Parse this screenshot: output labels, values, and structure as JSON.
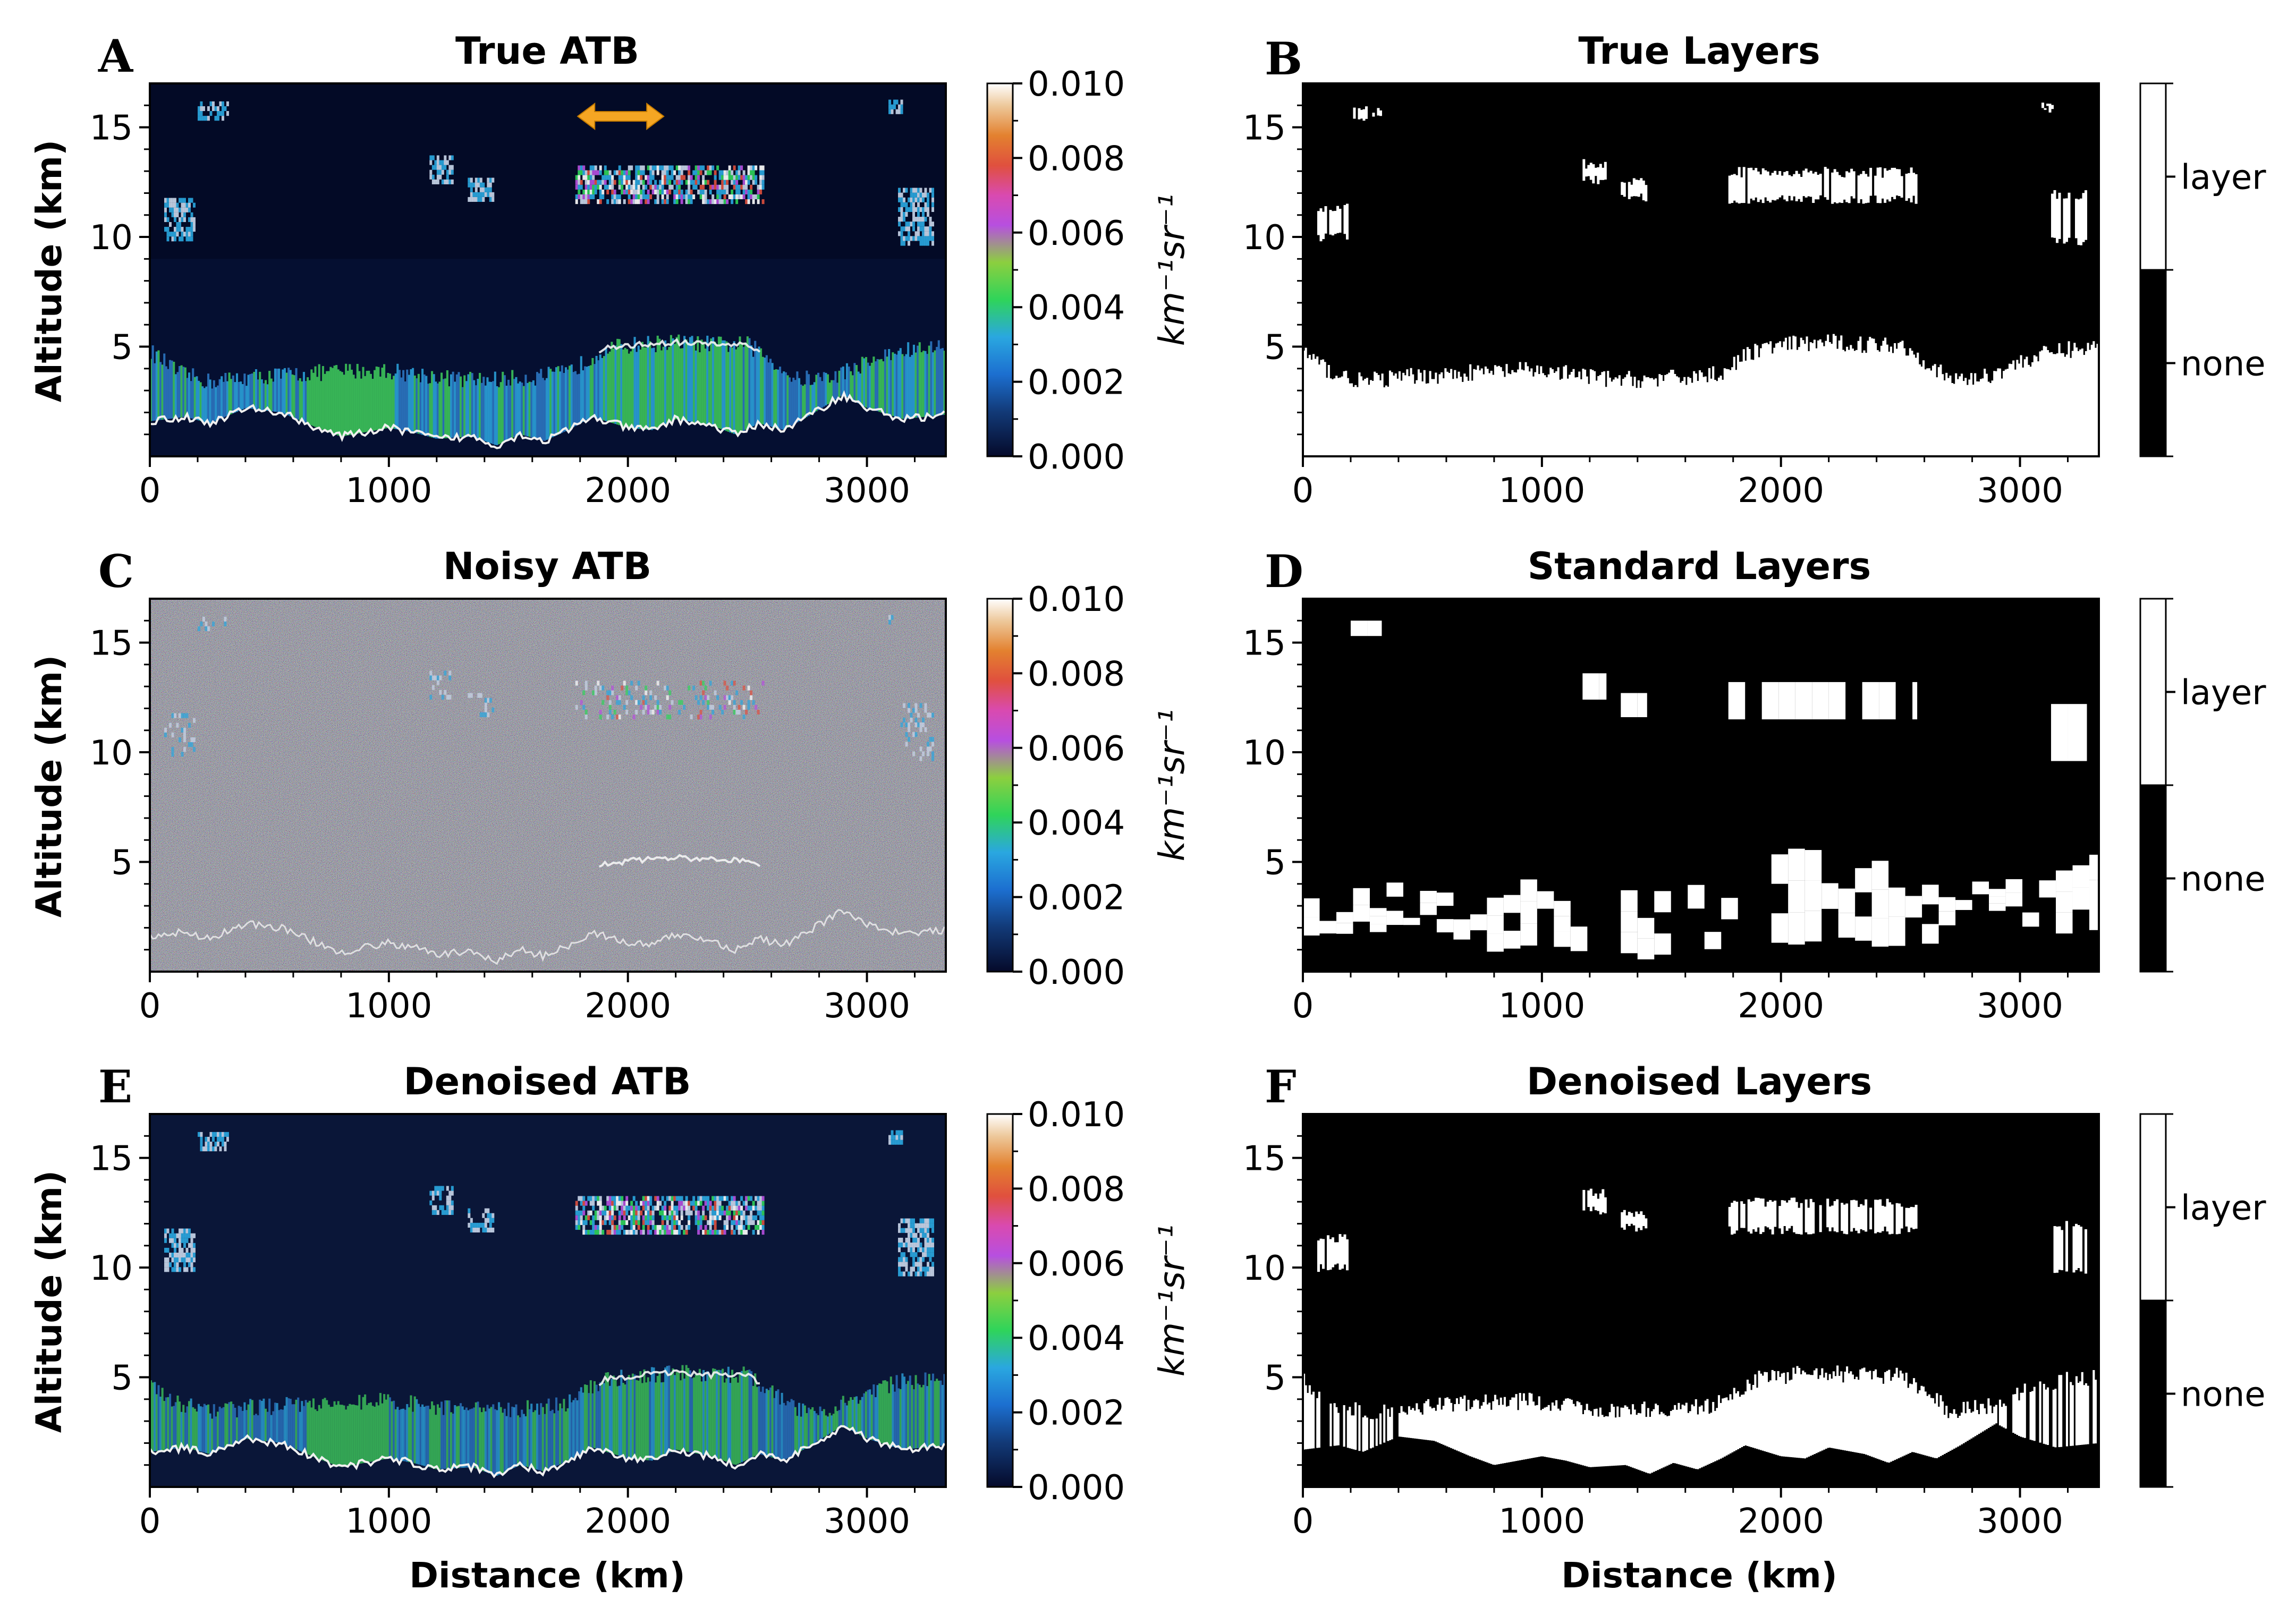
{
  "chart_data": [
    {
      "panel": "A",
      "title": "True ATB",
      "type": "heatmap",
      "kind": "atb",
      "variant": "true",
      "xlabel": "",
      "ylabel": "Altitude (km)",
      "xlim": [
        0,
        3330
      ],
      "ylim": [
        0,
        17
      ],
      "xticks": [
        "0",
        "1000",
        "2000",
        "3000"
      ],
      "yticks": [
        "5",
        "10",
        "15"
      ],
      "colorbar": {
        "ticks": [
          "0.000",
          "0.002",
          "0.004",
          "0.006",
          "0.008",
          "0.010"
        ],
        "unit": "km⁻¹sr⁻¹",
        "range": [
          0,
          0.01
        ]
      },
      "annotation": {
        "type": "double-arrow",
        "x_from": 1790,
        "x_to": 2150,
        "y": 15.5,
        "color": "#f5a623"
      }
    },
    {
      "panel": "B",
      "title": "True Layers",
      "type": "heatmap",
      "kind": "layer",
      "variant": "true",
      "xlabel": "",
      "ylabel": "",
      "xlim": [
        0,
        3330
      ],
      "ylim": [
        0,
        17
      ],
      "xticks": [
        "0",
        "1000",
        "2000",
        "3000"
      ],
      "yticks": [
        "5",
        "10",
        "15"
      ],
      "colorbar": {
        "categories": [
          "layer",
          "none"
        ]
      }
    },
    {
      "panel": "C",
      "title": "Noisy ATB",
      "type": "heatmap",
      "kind": "atb",
      "variant": "noisy",
      "xlabel": "",
      "ylabel": "Altitude (km)",
      "xlim": [
        0,
        3330
      ],
      "ylim": [
        0,
        17
      ],
      "xticks": [
        "0",
        "1000",
        "2000",
        "3000"
      ],
      "yticks": [
        "5",
        "10",
        "15"
      ],
      "colorbar": {
        "ticks": [
          "0.000",
          "0.002",
          "0.004",
          "0.006",
          "0.008",
          "0.010"
        ],
        "unit": "km⁻¹sr⁻¹",
        "range": [
          0,
          0.01
        ]
      }
    },
    {
      "panel": "D",
      "title": "Standard Layers",
      "type": "heatmap",
      "kind": "layer",
      "variant": "standard",
      "xlabel": "",
      "ylabel": "",
      "xlim": [
        0,
        3330
      ],
      "ylim": [
        0,
        17
      ],
      "xticks": [
        "0",
        "1000",
        "2000",
        "3000"
      ],
      "yticks": [
        "5",
        "10",
        "15"
      ],
      "colorbar": {
        "categories": [
          "layer",
          "none"
        ]
      }
    },
    {
      "panel": "E",
      "title": "Denoised ATB",
      "type": "heatmap",
      "kind": "atb",
      "variant": "denoised",
      "xlabel": "Distance (km)",
      "ylabel": "Altitude (km)",
      "xlim": [
        0,
        3330
      ],
      "ylim": [
        0,
        17
      ],
      "xticks": [
        "0",
        "1000",
        "2000",
        "3000"
      ],
      "yticks": [
        "5",
        "10",
        "15"
      ],
      "colorbar": {
        "ticks": [
          "0.000",
          "0.002",
          "0.004",
          "0.006",
          "0.008",
          "0.010"
        ],
        "unit": "km⁻¹sr⁻¹",
        "range": [
          0,
          0.01
        ]
      }
    },
    {
      "panel": "F",
      "title": "Denoised Layers",
      "type": "heatmap",
      "kind": "layer",
      "variant": "denoised",
      "xlabel": "Distance (km)",
      "ylabel": "",
      "xlim": [
        0,
        3330
      ],
      "ylim": [
        0,
        17
      ],
      "xticks": [
        "0",
        "1000",
        "2000",
        "3000"
      ],
      "yticks": [
        "5",
        "10",
        "15"
      ],
      "colorbar": {
        "categories": [
          "layer",
          "none"
        ]
      }
    }
  ],
  "features": {
    "surface_km": [
      [
        0,
        1.6
      ],
      [
        150,
        1.8
      ],
      [
        250,
        1.5
      ],
      [
        400,
        2.2
      ],
      [
        550,
        2.0
      ],
      [
        700,
        1.3
      ],
      [
        800,
        0.9
      ],
      [
        900,
        1.1
      ],
      [
        1000,
        1.3
      ],
      [
        1100,
        1.1
      ],
      [
        1200,
        0.8
      ],
      [
        1350,
        0.9
      ],
      [
        1450,
        0.5
      ],
      [
        1550,
        1.0
      ],
      [
        1650,
        0.7
      ],
      [
        1750,
        1.2
      ],
      [
        1850,
        1.8
      ],
      [
        2000,
        1.3
      ],
      [
        2100,
        1.2
      ],
      [
        2200,
        1.7
      ],
      [
        2350,
        1.4
      ],
      [
        2450,
        1.0
      ],
      [
        2550,
        1.5
      ],
      [
        2650,
        1.2
      ],
      [
        2750,
        1.8
      ],
      [
        2900,
        2.8
      ],
      [
        3000,
        2.2
      ],
      [
        3150,
        1.7
      ],
      [
        3330,
        1.9
      ]
    ],
    "pbl_top_km": [
      [
        0,
        4.8
      ],
      [
        120,
        3.8
      ],
      [
        250,
        3.4
      ],
      [
        400,
        3.6
      ],
      [
        550,
        3.7
      ],
      [
        700,
        3.8
      ],
      [
        850,
        3.9
      ],
      [
        1000,
        3.9
      ],
      [
        1150,
        3.7
      ],
      [
        1300,
        3.5
      ],
      [
        1450,
        3.5
      ],
      [
        1600,
        3.6
      ],
      [
        1750,
        3.8
      ],
      [
        1900,
        4.9
      ],
      [
        2050,
        5.1
      ],
      [
        2200,
        5.2
      ],
      [
        2350,
        5.1
      ],
      [
        2500,
        5.1
      ],
      [
        2600,
        4.4
      ],
      [
        2700,
        3.5
      ],
      [
        2850,
        3.6
      ],
      [
        3000,
        4.3
      ],
      [
        3150,
        4.8
      ],
      [
        3330,
        5.0
      ]
    ],
    "clouds": [
      {
        "x": [
          1780,
          2570
        ],
        "y": [
          11.5,
          13.2
        ],
        "intensity": 0.85
      },
      {
        "x": [
          1170,
          1270
        ],
        "y": [
          12.4,
          13.6
        ],
        "intensity": 0.55
      },
      {
        "x": [
          1330,
          1440
        ],
        "y": [
          11.6,
          12.7
        ],
        "intensity": 0.55
      },
      {
        "x": [
          60,
          190
        ],
        "y": [
          9.8,
          11.6
        ],
        "intensity": 0.55
      },
      {
        "x": [
          3130,
          3280
        ],
        "y": [
          9.6,
          12.2
        ],
        "intensity": 0.6
      },
      {
        "x": [
          200,
          330
        ],
        "y": [
          15.3,
          16.0
        ],
        "intensity": 0.3
      },
      {
        "x": [
          3090,
          3150
        ],
        "y": [
          15.6,
          16.2
        ],
        "intensity": 0.25
      }
    ]
  }
}
